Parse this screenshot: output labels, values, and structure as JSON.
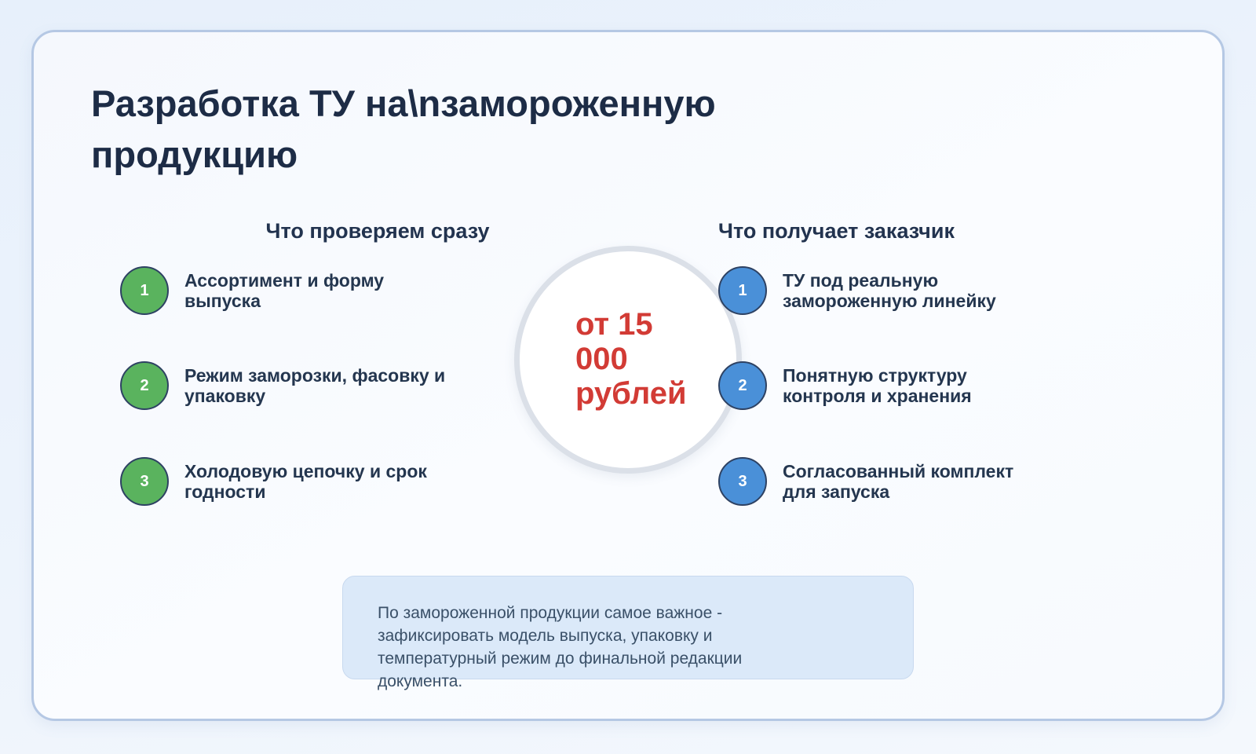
{
  "page": {
    "title": "Разработка ТУ на\\nзамороженную продукцию"
  },
  "price_circle": {
    "text": "от 15 000 рублей",
    "lines": [
      "от 15",
      "000",
      "рублей"
    ]
  },
  "left_column": {
    "header": "Что проверяем сразу",
    "items": [
      {
        "number": "1",
        "lines": [
          "Ассортимент и форму",
          "выпуска"
        ]
      },
      {
        "number": "2",
        "lines": [
          "Режим заморозки, фасовку и",
          "упаковку"
        ]
      },
      {
        "number": "3",
        "lines": [
          "Холодовую цепочку и срок",
          "годности"
        ]
      }
    ]
  },
  "right_column": {
    "header": "Что получает заказчик",
    "items": [
      {
        "number": "1",
        "lines": [
          "ТУ под реальную",
          "замороженную линейку"
        ]
      },
      {
        "number": "2",
        "lines": [
          "Понятную структуру",
          "контроля и хранения"
        ]
      },
      {
        "number": "3",
        "lines": [
          "Согласованный комплект",
          "для запуска"
        ]
      }
    ]
  },
  "note": {
    "text": "По замороженной продукции самое важное - зафиксировать модель выпуска, упаковку и температурный режим до финальной редакции документа.",
    "lines": [
      "По замороженной продукции самое важное -",
      "зафиксировать модель выпуска, упаковку и",
      "температурный режим до финальной редакции",
      "документа."
    ]
  },
  "colors": {
    "accent_green": "#5ab35e",
    "accent_blue": "#4a90d8",
    "price_red": "#d23b35",
    "number_circle_border": "#2e4263",
    "title_text": "#1d2c46",
    "item_text": "#24364f",
    "note_background": "#dbe9f9",
    "note_text": "#3a5068",
    "card_border": "#b5c8e4"
  }
}
